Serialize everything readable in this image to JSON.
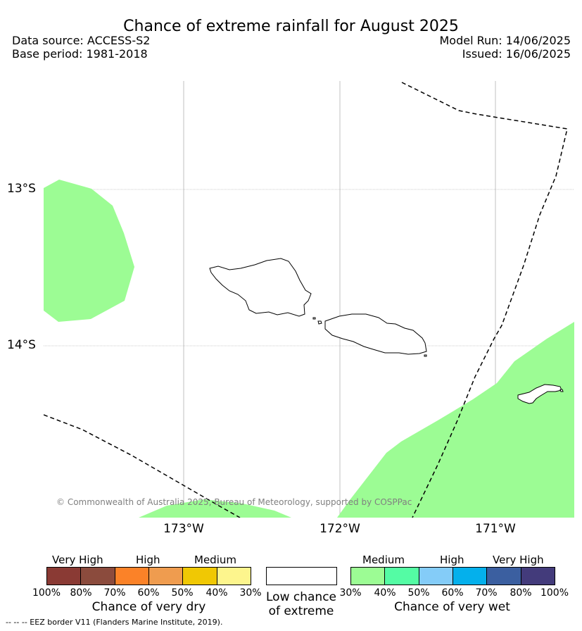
{
  "header": {
    "title": "Chance of extreme rainfall for August 2025",
    "data_source": "Data source: ACCESS-S2",
    "base_period": "Base period: 1981-2018",
    "model_run": "Model Run: 14/06/2025",
    "issued": "Issued: 16/06/2025"
  },
  "map": {
    "lat_labels": [
      "13°S",
      "14°S"
    ],
    "lon_labels": [
      "173°W",
      "172°W",
      "171°W"
    ],
    "copyright": "© Commonwealth of Australia 2025, Bureau of Meteorology, supported by COSPPac",
    "wet_fill_color": "#9cfc94",
    "eez_line": "dashed"
  },
  "legend": {
    "dry": {
      "headings": [
        "Very High",
        "High",
        "Medium"
      ],
      "ticks": [
        "100%",
        "80%",
        "70%",
        "60%",
        "50%",
        "40%",
        "30%"
      ],
      "colors": [
        "#8a3a34",
        "#8b4b3d",
        "#fb8228",
        "#ef9c4f",
        "#f0c804",
        "#fdf58d"
      ],
      "title": "Chance of very dry"
    },
    "low": {
      "title_line1": "Low chance",
      "title_line2": "of extreme",
      "color": "#ffffff"
    },
    "wet": {
      "headings": [
        "Medium",
        "High",
        "Very High"
      ],
      "ticks": [
        "30%",
        "40%",
        "50%",
        "60%",
        "70%",
        "80%",
        "100%"
      ],
      "colors": [
        "#9cfc94",
        "#54fca4",
        "#84ccf8",
        "#04b0ec",
        "#3b5fa0",
        "#433b7b"
      ],
      "title": "Chance of very wet"
    }
  },
  "footer": {
    "text": "--  --  -- EEZ border V11 (Flanders Marine Institute, 2019)."
  }
}
